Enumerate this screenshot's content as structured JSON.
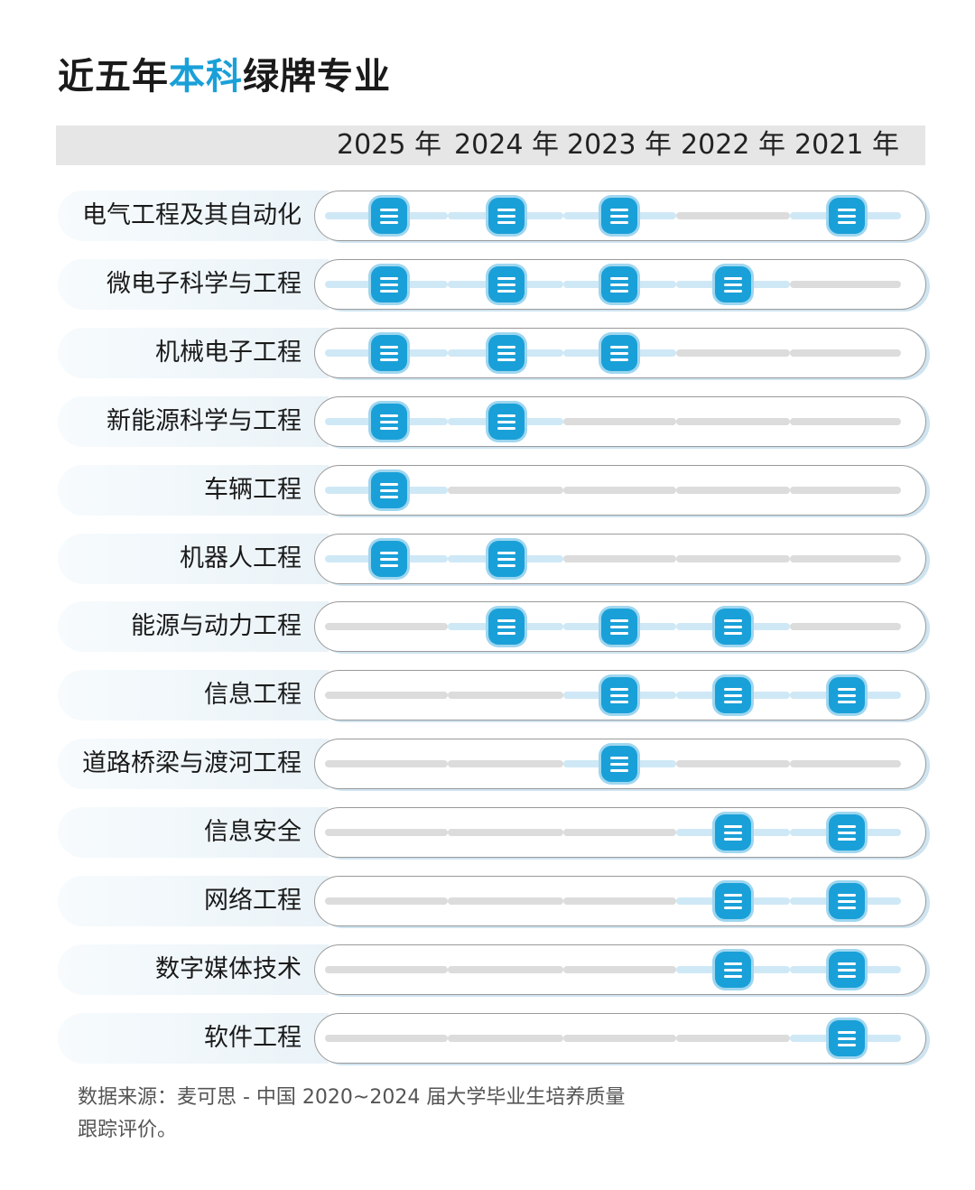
{
  "title": {
    "prefix": "近五年",
    "highlight": "本科",
    "suffix": "绿牌专业"
  },
  "chart_data": {
    "type": "table",
    "columns": [
      "2025 年",
      "2024 年",
      "2023 年",
      "2022 年",
      "2021 年"
    ],
    "rows": [
      {
        "name": "电气工程及其自动化",
        "marks": [
          1,
          1,
          1,
          0,
          1
        ]
      },
      {
        "name": "微电子科学与工程",
        "marks": [
          1,
          1,
          1,
          1,
          0
        ]
      },
      {
        "name": "机械电子工程",
        "marks": [
          1,
          1,
          1,
          0,
          0
        ]
      },
      {
        "name": "新能源科学与工程",
        "marks": [
          1,
          1,
          0,
          0,
          0
        ]
      },
      {
        "name": "车辆工程",
        "marks": [
          1,
          0,
          0,
          0,
          0
        ]
      },
      {
        "name": "机器人工程",
        "marks": [
          1,
          1,
          0,
          0,
          0
        ]
      },
      {
        "name": "能源与动力工程",
        "marks": [
          0,
          1,
          1,
          1,
          0
        ]
      },
      {
        "name": "信息工程",
        "marks": [
          0,
          0,
          1,
          1,
          1
        ]
      },
      {
        "name": "道路桥梁与渡河工程",
        "marks": [
          0,
          0,
          1,
          0,
          0
        ]
      },
      {
        "name": "信息安全",
        "marks": [
          0,
          0,
          0,
          1,
          1
        ]
      },
      {
        "name": "网络工程",
        "marks": [
          0,
          0,
          0,
          1,
          1
        ]
      },
      {
        "name": "数字媒体技术",
        "marks": [
          0,
          0,
          0,
          1,
          1
        ]
      },
      {
        "name": "软件工程",
        "marks": [
          0,
          0,
          0,
          0,
          1
        ]
      }
    ],
    "colors": {
      "marker": "#1aa0d8",
      "track_active": "#cfe8f6",
      "track_inactive": "#dcdcdc",
      "title_highlight": "#1aa0d8"
    }
  },
  "source": {
    "line1": "数据来源：麦可思 - 中国 2020~2024 届大学毕业生培养质量",
    "line2": "跟踪评价。"
  }
}
